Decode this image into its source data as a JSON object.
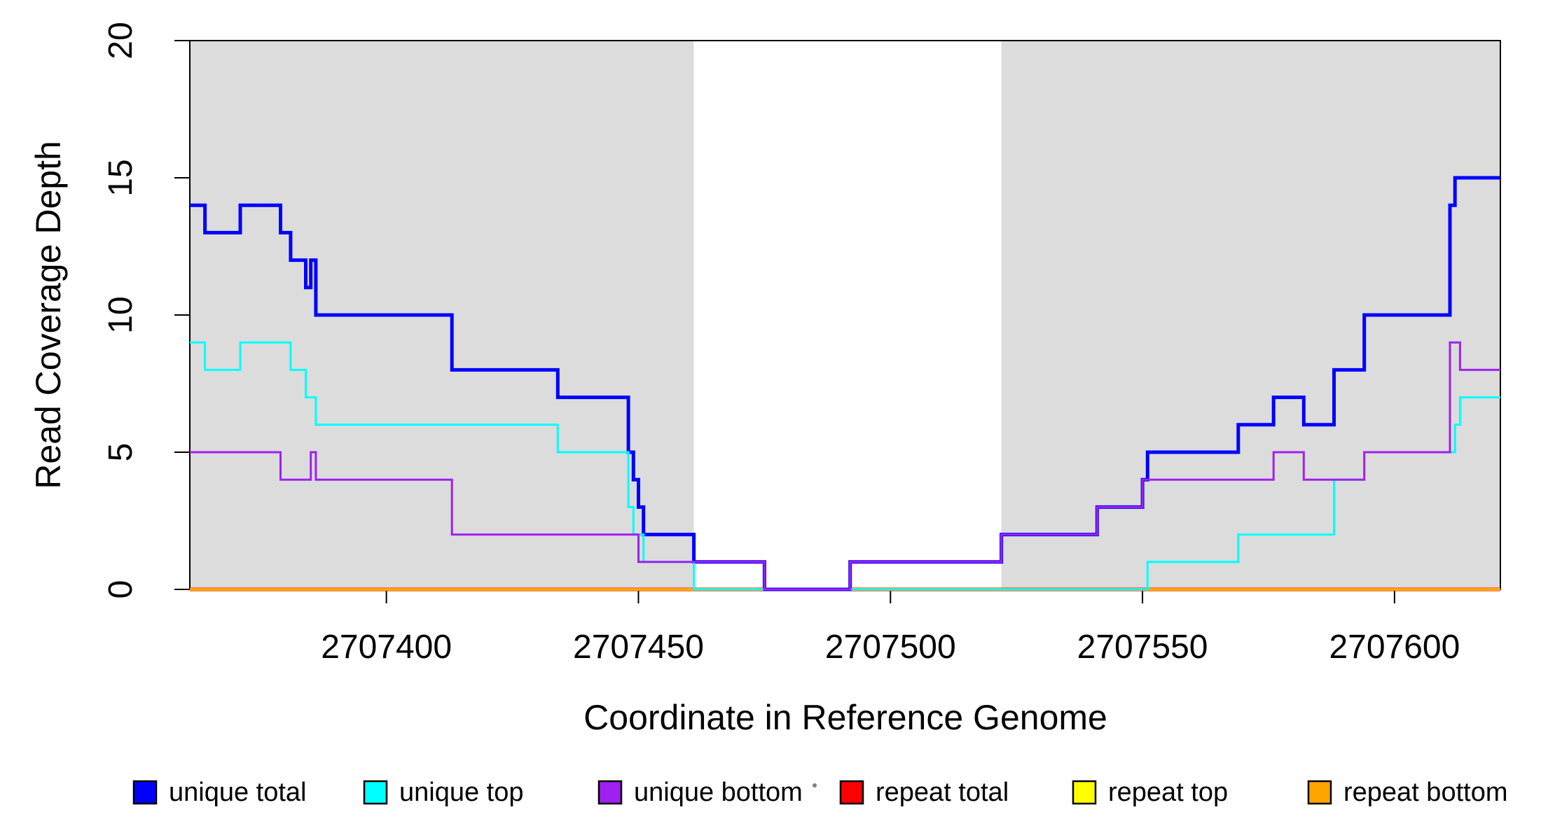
{
  "chart_data": {
    "type": "line",
    "subtype": "step",
    "title": "",
    "xlabel": "Coordinate in Reference Genome",
    "ylabel": "Read Coverage Depth",
    "xlim": [
      2707361,
      2707621
    ],
    "ylim": [
      0,
      20
    ],
    "grid": false,
    "x_ticks": [
      {
        "value": 2707400,
        "label": "2707400"
      },
      {
        "value": 2707450,
        "label": "2707450"
      },
      {
        "value": 2707500,
        "label": "2707500"
      },
      {
        "value": 2707550,
        "label": "2707550"
      },
      {
        "value": 2707600,
        "label": "2707600"
      }
    ],
    "y_ticks": [
      {
        "value": 0,
        "label": "0"
      },
      {
        "value": 5,
        "label": "5"
      },
      {
        "value": 10,
        "label": "10"
      },
      {
        "value": 15,
        "label": "15"
      },
      {
        "value": 20,
        "label": "20"
      }
    ],
    "shaded_regions": [
      {
        "x0": 2707361,
        "x1": 2707461,
        "color": "#DCDCDC"
      },
      {
        "x0": 2707522,
        "x1": 2707621,
        "color": "#DCDCDC"
      }
    ],
    "x_end": 2707621,
    "series": [
      {
        "name": "repeat total",
        "color": "#FF0000",
        "width": 5,
        "points": [
          [
            2707361,
            0
          ]
        ]
      },
      {
        "name": "repeat top",
        "color": "#FFFF00",
        "width": 3,
        "points": [
          [
            2707361,
            0
          ]
        ]
      },
      {
        "name": "repeat bottom",
        "color": "#FFA500",
        "width": 4,
        "points": [
          [
            2707361,
            0
          ]
        ]
      },
      {
        "name": "unique total",
        "color": "#0000FF",
        "width": 5,
        "points": [
          [
            2707361,
            14
          ],
          [
            2707364,
            13
          ],
          [
            2707371,
            14
          ],
          [
            2707379,
            13
          ],
          [
            2707381,
            12
          ],
          [
            2707384,
            11
          ],
          [
            2707385,
            12
          ],
          [
            2707386,
            10
          ],
          [
            2707413,
            8
          ],
          [
            2707434,
            7
          ],
          [
            2707448,
            5
          ],
          [
            2707449,
            4
          ],
          [
            2707450,
            3
          ],
          [
            2707451,
            2
          ],
          [
            2707461,
            1
          ],
          [
            2707475,
            0
          ],
          [
            2707492,
            1
          ],
          [
            2707522,
            2
          ],
          [
            2707541,
            3
          ],
          [
            2707550,
            4
          ],
          [
            2707551,
            5
          ],
          [
            2707569,
            6
          ],
          [
            2707576,
            7
          ],
          [
            2707582,
            6
          ],
          [
            2707588,
            8
          ],
          [
            2707594,
            10
          ],
          [
            2707611,
            14
          ],
          [
            2707612,
            15
          ]
        ]
      },
      {
        "name": "unique top",
        "color": "#00FFFF",
        "width": 3,
        "points": [
          [
            2707361,
            9
          ],
          [
            2707364,
            8
          ],
          [
            2707371,
            9
          ],
          [
            2707381,
            8
          ],
          [
            2707384,
            7
          ],
          [
            2707386,
            6
          ],
          [
            2707434,
            5
          ],
          [
            2707448,
            3
          ],
          [
            2707449,
            2
          ],
          [
            2707451,
            1
          ],
          [
            2707461,
            0
          ],
          [
            2707551,
            1
          ],
          [
            2707569,
            2
          ],
          [
            2707588,
            4
          ],
          [
            2707594,
            5
          ],
          [
            2707612,
            6
          ],
          [
            2707613,
            7
          ]
        ]
      },
      {
        "name": "unique bottom",
        "color": "#A020F0",
        "width": 3,
        "points": [
          [
            2707361,
            5
          ],
          [
            2707379,
            4
          ],
          [
            2707385,
            5
          ],
          [
            2707386,
            4
          ],
          [
            2707413,
            2
          ],
          [
            2707450,
            1
          ],
          [
            2707475,
            0
          ],
          [
            2707492,
            1
          ],
          [
            2707522,
            2
          ],
          [
            2707541,
            3
          ],
          [
            2707550,
            4
          ],
          [
            2707576,
            5
          ],
          [
            2707582,
            4
          ],
          [
            2707594,
            5
          ],
          [
            2707611,
            9
          ],
          [
            2707613,
            8
          ]
        ]
      }
    ]
  },
  "legend": {
    "items": [
      {
        "label": "unique total",
        "color": "#0000FF"
      },
      {
        "label": "unique top",
        "color": "#00FFFF"
      },
      {
        "label": "unique bottom",
        "color": "#A020F0"
      },
      {
        "label": "repeat total",
        "color": "#FF0000"
      },
      {
        "label": "repeat top",
        "color": "#FFFF00"
      },
      {
        "label": "repeat bottom",
        "color": "#FFA500"
      }
    ]
  },
  "colors": {
    "background": "#FFFFFF",
    "plot_band": "#DCDCDC",
    "axis": "#000000"
  }
}
